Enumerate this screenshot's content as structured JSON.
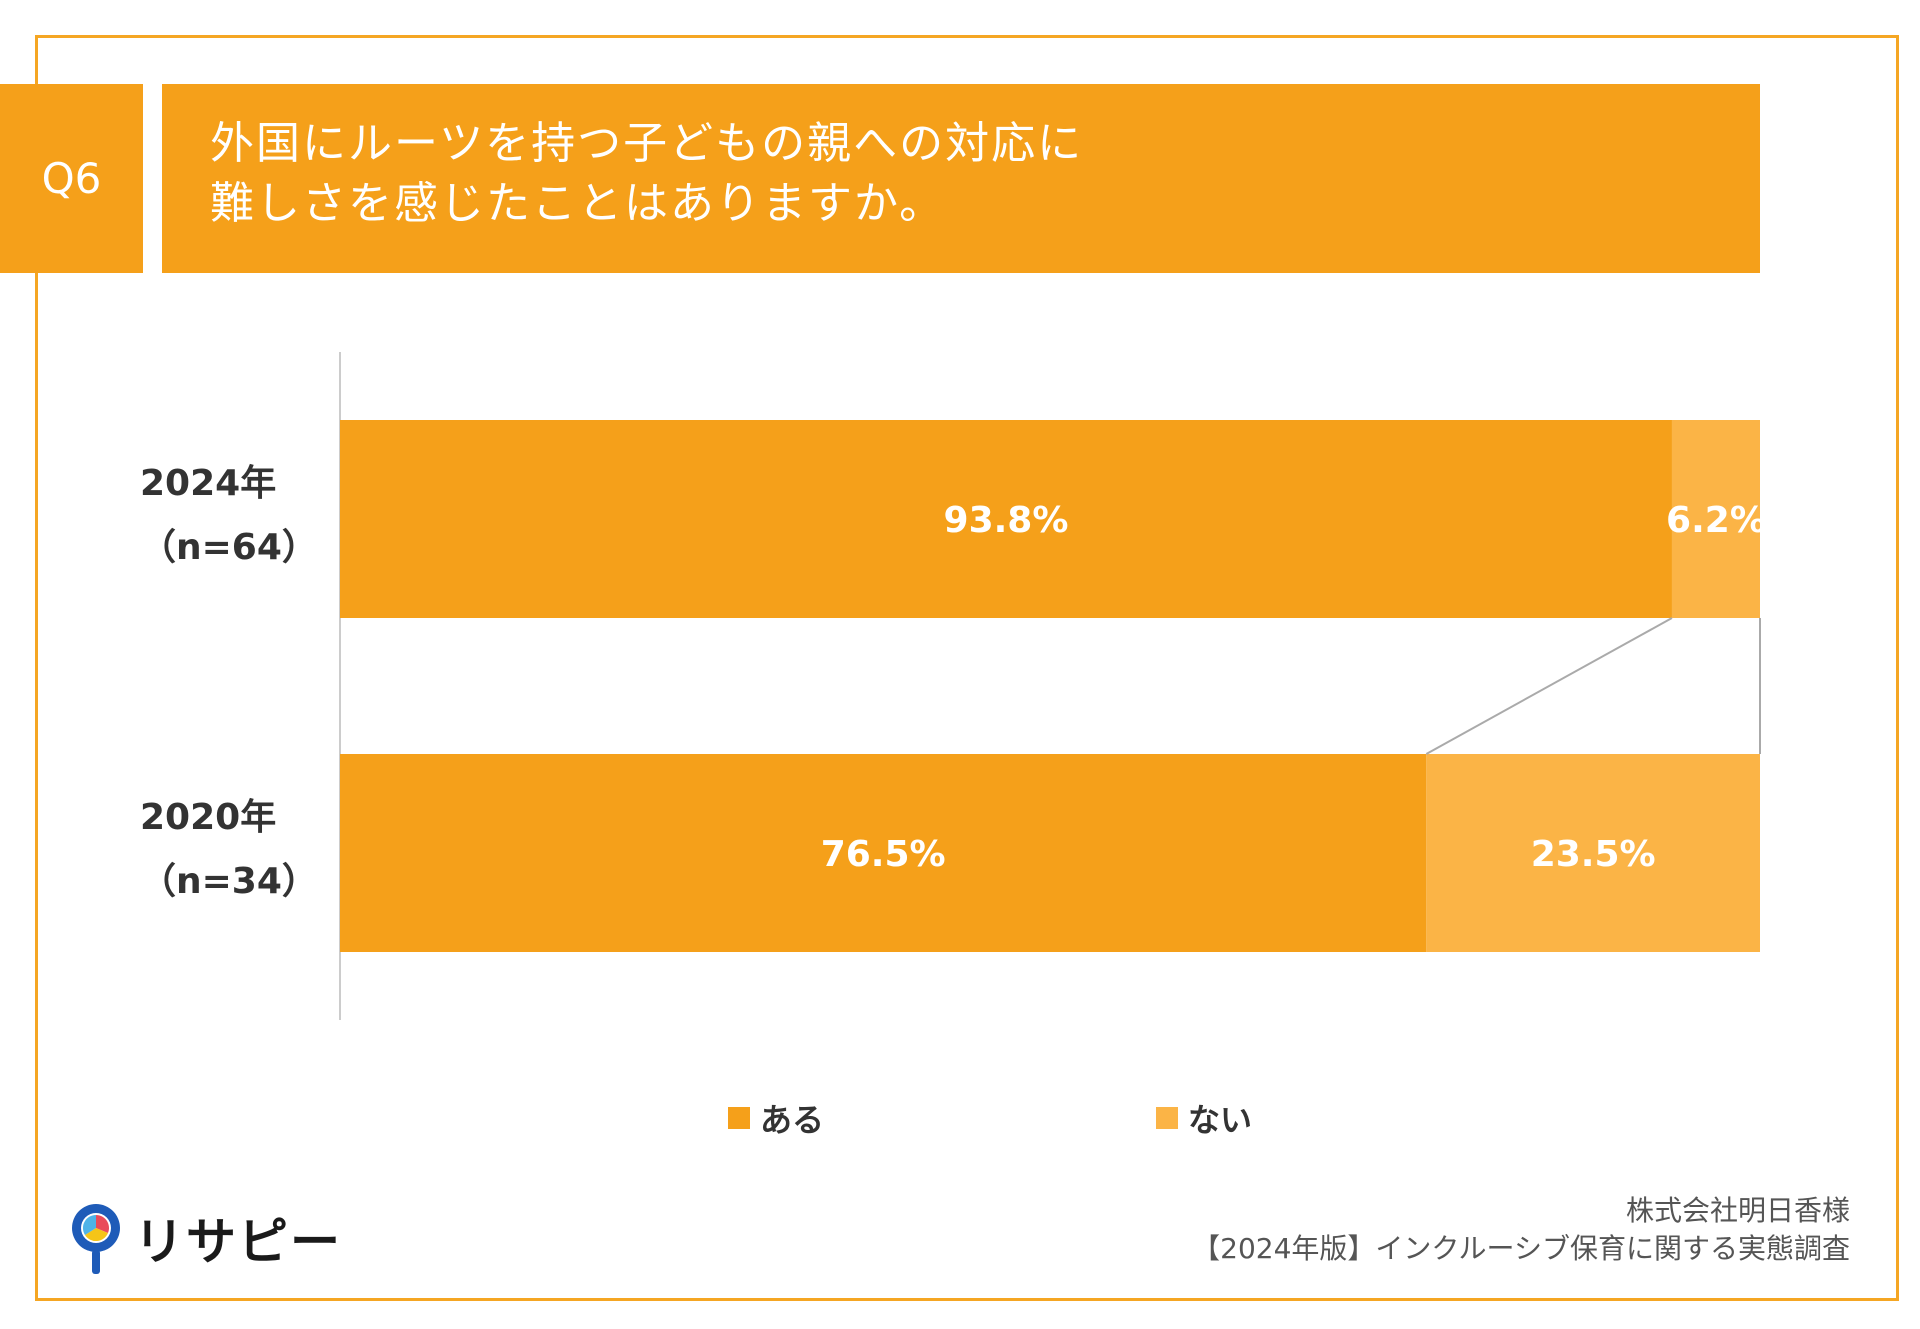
{
  "question": {
    "label": "Q6",
    "title_line1": "外国にルーツを持つ子どもの親への対応に",
    "title_line2": "難しさを感じたことはありますか。"
  },
  "chart_data": {
    "type": "bar",
    "orientation": "horizontal-stacked-100",
    "categories": [
      "2024年（n=64）",
      "2020年（n=34）"
    ],
    "category_lines": [
      [
        "2024年",
        "（n=64）"
      ],
      [
        "2020年",
        "（n=34）"
      ]
    ],
    "series": [
      {
        "name": "ある",
        "values": [
          93.8,
          76.5
        ],
        "labels": [
          "93.8%",
          "76.5%"
        ]
      },
      {
        "name": "ない",
        "values": [
          6.2,
          23.5
        ],
        "labels": [
          "6.2%",
          "23.5%"
        ]
      }
    ],
    "xlim": [
      0,
      100
    ],
    "legend": "bottom",
    "colors": {
      "ある": "#F5A01A",
      "ない": "#FBB446"
    }
  },
  "legend": {
    "item1": "ある",
    "item2": "ない"
  },
  "brand": {
    "logo_text": "リサピー"
  },
  "credit": {
    "line1": "株式会社明日香様",
    "line2": "【2024年版】インクルーシブ保育に関する実態調査"
  }
}
